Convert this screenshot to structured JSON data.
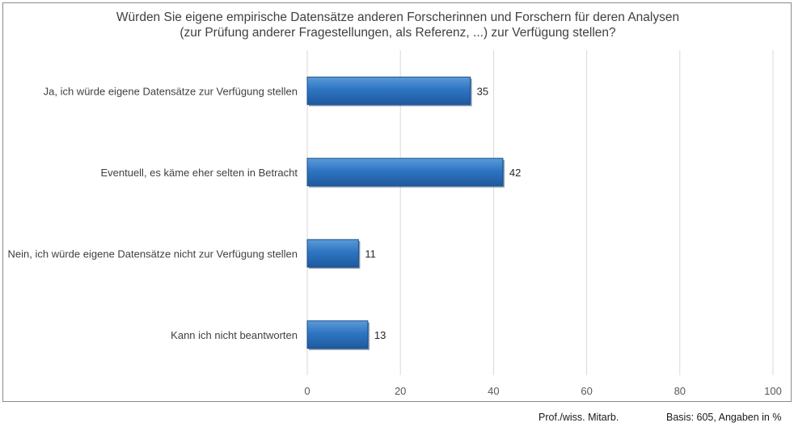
{
  "chart_data": {
    "type": "bar",
    "orientation": "horizontal",
    "title": [
      "Würden Sie eigene empirische Datensätze anderen Forscherinnen und Forschern für deren Analysen",
      "(zur Prüfung anderer Fragestellungen, als Referenz, ...) zur Verfügung stellen?"
    ],
    "categories": [
      "Ja, ich würde eigene Datensätze zur Verfügung stellen",
      "Eventuell, es käme eher selten in Betracht",
      "Nein, ich würde eigene Datensätze nicht zur Verfügung stellen",
      "Kann ich nicht beantworten"
    ],
    "values": [
      35,
      42,
      11,
      13
    ],
    "xlim": [
      0,
      100
    ],
    "xticks": [
      0,
      20,
      40,
      60,
      80,
      100
    ],
    "grid": true,
    "data_labels": true,
    "bar_color": "#2e75c3"
  },
  "footer": {
    "group": "Prof./wiss. Mitarb.",
    "basis": "Basis: 605, Angaben in %"
  }
}
